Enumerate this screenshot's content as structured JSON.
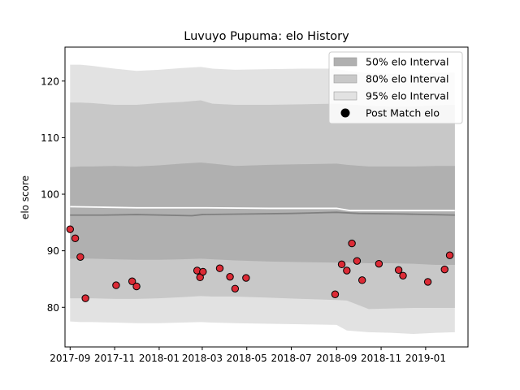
{
  "chart_data": {
    "type": "area",
    "title": "Luvuyo Pupuma: elo History",
    "xlabel": "",
    "ylabel": "elo score",
    "xlim": [
      "2017-08-25",
      "2019-02-28"
    ],
    "ylim": [
      73,
      126
    ],
    "xticks": [
      "2017-09",
      "2017-11",
      "2018-01",
      "2018-03",
      "2018-05",
      "2018-07",
      "2018-09",
      "2018-11",
      "2019-01"
    ],
    "yticks": [
      80,
      90,
      100,
      110,
      120
    ],
    "grid": false,
    "legend_position": "top-right",
    "legend": [
      {
        "label": "50% elo Interval",
        "color": "#b0b0b0",
        "kind": "patch"
      },
      {
        "label": "80% elo Interval",
        "color": "#c8c8c8",
        "kind": "patch"
      },
      {
        "label": "95% elo Interval",
        "color": "#e2e2e2",
        "kind": "patch"
      },
      {
        "label": "Post Match elo",
        "color": "#000000",
        "kind": "marker"
      }
    ],
    "bands": [
      {
        "name": "95% elo Interval",
        "color": "#e2e2e2",
        "x": [
          "2017-09-01",
          "2017-09-15",
          "2017-10-01",
          "2017-11-01",
          "2017-12-01",
          "2018-01-01",
          "2018-02-01",
          "2018-02-27",
          "2018-03-15",
          "2018-04-15",
          "2018-06-01",
          "2018-07-15",
          "2018-09-01",
          "2018-09-15",
          "2018-10-15",
          "2018-11-15",
          "2018-12-15",
          "2019-01-15",
          "2019-02-10"
        ],
        "upper": [
          122.9,
          122.9,
          122.7,
          122.2,
          121.8,
          122.0,
          122.3,
          122.5,
          122.2,
          122.0,
          122.1,
          122.2,
          122.2,
          121.8,
          121.4,
          121.3,
          121.2,
          121.5,
          121.5
        ],
        "lower": [
          77.5,
          77.4,
          77.4,
          77.3,
          77.2,
          77.2,
          77.3,
          77.4,
          77.3,
          77.2,
          77.1,
          77.0,
          76.9,
          75.9,
          75.6,
          75.5,
          75.3,
          75.5,
          75.6
        ]
      },
      {
        "name": "80% elo Interval",
        "color": "#c8c8c8",
        "x": [
          "2017-09-01",
          "2017-09-15",
          "2017-10-01",
          "2017-11-01",
          "2017-12-01",
          "2018-01-01",
          "2018-02-01",
          "2018-02-27",
          "2018-03-15",
          "2018-04-15",
          "2018-06-01",
          "2018-07-15",
          "2018-09-01",
          "2018-09-15",
          "2018-10-15",
          "2018-11-15",
          "2018-12-15",
          "2019-01-15",
          "2019-02-10"
        ],
        "upper": [
          116.2,
          116.2,
          116.1,
          115.8,
          115.8,
          116.1,
          116.3,
          116.6,
          116.0,
          115.8,
          115.8,
          115.9,
          116.0,
          115.9,
          115.6,
          115.5,
          115.5,
          115.7,
          115.8
        ],
        "lower": [
          81.6,
          81.6,
          81.6,
          81.5,
          81.5,
          81.6,
          81.8,
          82.0,
          81.9,
          81.9,
          81.7,
          81.5,
          81.3,
          81.2,
          79.7,
          79.8,
          79.9,
          79.9,
          79.9
        ]
      },
      {
        "name": "50% elo Interval",
        "color": "#b0b0b0",
        "x": [
          "2017-09-01",
          "2017-09-15",
          "2017-10-01",
          "2017-11-01",
          "2017-12-01",
          "2018-01-01",
          "2018-02-01",
          "2018-02-27",
          "2018-03-15",
          "2018-04-15",
          "2018-06-01",
          "2018-07-15",
          "2018-09-01",
          "2018-09-15",
          "2018-10-15",
          "2018-11-15",
          "2018-12-15",
          "2019-01-15",
          "2019-02-10"
        ],
        "upper": [
          104.8,
          104.9,
          104.9,
          105.0,
          104.9,
          105.1,
          105.4,
          105.6,
          105.4,
          105.0,
          105.2,
          105.3,
          105.4,
          105.2,
          104.9,
          104.9,
          104.9,
          105.0,
          105.0
        ],
        "lower": [
          88.6,
          88.6,
          88.6,
          88.5,
          88.4,
          88.4,
          88.5,
          88.6,
          88.5,
          88.3,
          88.1,
          88.0,
          87.9,
          87.9,
          87.8,
          87.8,
          87.7,
          87.5,
          87.5
        ]
      }
    ],
    "lines": [
      {
        "name": "mean",
        "color": "#ffffff",
        "x": [
          "2017-09-01",
          "2017-10-15",
          "2017-12-01",
          "2018-03-01",
          "2018-06-01",
          "2018-09-01",
          "2018-09-20",
          "2019-02-10"
        ],
        "y": [
          97.8,
          97.7,
          97.6,
          97.6,
          97.5,
          97.5,
          97.1,
          97.1
        ]
      },
      {
        "name": "median",
        "color": "#808080",
        "x": [
          "2017-09-01",
          "2017-10-15",
          "2017-12-01",
          "2018-02-15",
          "2018-03-01",
          "2018-05-01",
          "2018-07-01",
          "2018-09-01",
          "2018-10-01",
          "2018-12-01",
          "2019-02-10"
        ],
        "y": [
          96.3,
          96.3,
          96.4,
          96.2,
          96.4,
          96.5,
          96.6,
          96.8,
          96.6,
          96.5,
          96.3
        ]
      }
    ],
    "points": {
      "name": "Post Match elo",
      "color": "#dc2b36",
      "x": [
        "2017-09-01",
        "2017-09-08",
        "2017-09-15",
        "2017-09-22",
        "2017-11-03",
        "2017-11-25",
        "2017-12-01",
        "2018-02-22",
        "2018-02-26",
        "2018-03-02",
        "2018-03-25",
        "2018-04-08",
        "2018-04-15",
        "2018-04-30",
        "2018-08-30",
        "2018-09-08",
        "2018-09-15",
        "2018-09-22",
        "2018-09-29",
        "2018-10-06",
        "2018-10-29",
        "2018-11-25",
        "2018-12-01",
        "2019-01-04",
        "2019-01-27",
        "2019-02-03"
      ],
      "y": [
        93.8,
        92.2,
        88.9,
        81.6,
        83.9,
        84.6,
        83.7,
        86.5,
        85.3,
        86.3,
        86.9,
        85.4,
        83.3,
        85.2,
        82.3,
        87.6,
        86.5,
        91.3,
        88.2,
        84.8,
        87.7,
        86.6,
        85.6,
        84.5,
        86.7,
        89.2
      ]
    }
  }
}
